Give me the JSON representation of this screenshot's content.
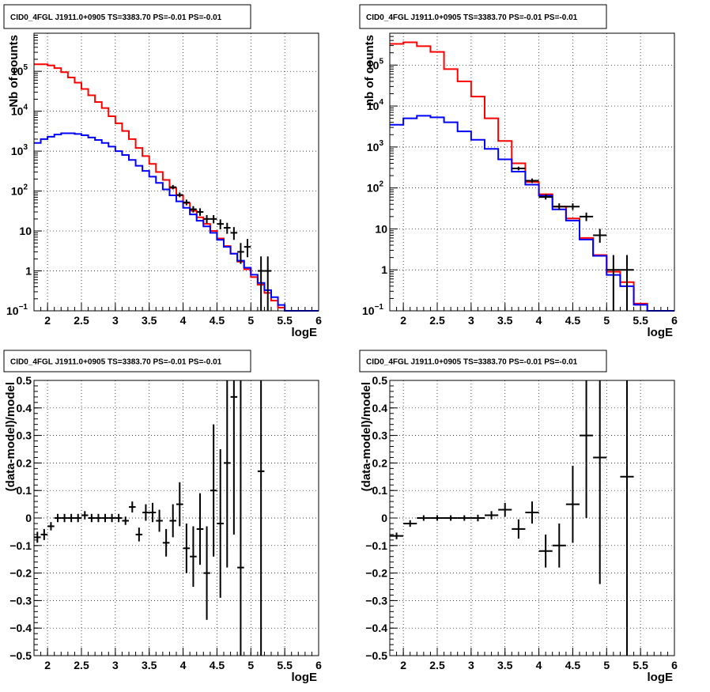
{
  "chart_data": [
    {
      "type": "histogram",
      "title": "CID0_4FGL J1911.0+0905 TS=3383.70 PS=-0.01 PS=-0.01",
      "xlabel": "logE",
      "ylabel": "Nb of counts",
      "log_y": true,
      "xlim": [
        1.8,
        6.0
      ],
      "ylim": [
        0.1,
        900000
      ],
      "grid": true,
      "x_ticks": [
        "2",
        "2.5",
        "3",
        "3.5",
        "4",
        "4.5",
        "5",
        "5.5",
        "6"
      ],
      "y_ticks": [
        {
          "value": 0.1,
          "label": "10",
          "exp": "−1"
        },
        {
          "value": 1,
          "label": "1",
          "exp": ""
        },
        {
          "value": 10,
          "label": "10",
          "exp": ""
        },
        {
          "value": 100,
          "label": "10",
          "exp": "2"
        },
        {
          "value": 1000,
          "label": "10",
          "exp": "3"
        },
        {
          "value": 10000,
          "label": "10",
          "exp": "4"
        },
        {
          "value": 100000,
          "label": "10",
          "exp": "5"
        }
      ],
      "bin_edges": [
        1.8,
        1.9,
        2.0,
        2.1,
        2.2,
        2.3,
        2.4,
        2.5,
        2.6,
        2.7,
        2.8,
        2.9,
        3.0,
        3.1,
        3.2,
        3.3,
        3.4,
        3.5,
        3.6,
        3.7,
        3.8,
        3.9,
        4.0,
        4.1,
        4.2,
        4.3,
        4.4,
        4.5,
        4.6,
        4.7,
        4.8,
        4.9,
        5.0,
        5.1,
        5.2,
        5.3,
        5.4,
        5.5,
        5.6,
        5.7,
        5.8,
        5.9,
        6.0
      ],
      "series": [
        {
          "color": "#ff0000",
          "values": [
            150000,
            150000,
            140000,
            120000,
            95000,
            70000,
            52000,
            36000,
            25000,
            17000,
            12000,
            7500,
            5000,
            3200,
            2000,
            1200,
            750,
            480,
            300,
            190,
            120,
            78,
            50,
            32,
            22,
            15,
            10,
            6.5,
            4.2,
            2.7,
            1.7,
            1.1,
            0.7,
            0.45,
            0.28,
            0.18,
            0.12,
            0.1,
            0.1,
            0.1,
            0.1,
            0.1
          ]
        },
        {
          "color": "#0000ff",
          "values": [
            1600,
            2000,
            2300,
            2600,
            2800,
            2800,
            2700,
            2500,
            2200,
            1900,
            1600,
            1300,
            1000,
            800,
            600,
            430,
            320,
            230,
            160,
            110,
            78,
            55,
            38,
            26,
            18,
            13,
            9,
            6,
            4,
            2.7,
            1.8,
            1.2,
            0.8,
            0.5,
            0.33,
            0.22,
            0.14,
            0.1,
            0.1,
            0.1,
            0.1,
            0.1
          ]
        },
        {
          "color": "#000000",
          "points": [
            {
              "x": 3.85,
              "y": 125,
              "ylo": 110,
              "yhi": 142
            },
            {
              "x": 3.95,
              "y": 80,
              "ylo": 70,
              "yhi": 92
            },
            {
              "x": 4.05,
              "y": 52,
              "ylo": 44,
              "yhi": 61
            },
            {
              "x": 4.15,
              "y": 35,
              "ylo": 29,
              "yhi": 42
            },
            {
              "x": 4.25,
              "y": 30,
              "ylo": 24,
              "yhi": 37
            },
            {
              "x": 4.35,
              "y": 20,
              "ylo": 15.5,
              "yhi": 25
            },
            {
              "x": 4.45,
              "y": 20,
              "ylo": 15.5,
              "yhi": 25
            },
            {
              "x": 4.55,
              "y": 15,
              "ylo": 11,
              "yhi": 19.5
            },
            {
              "x": 4.65,
              "y": 12,
              "ylo": 8.5,
              "yhi": 16
            },
            {
              "x": 4.75,
              "y": 9,
              "ylo": 6,
              "yhi": 12.5
            },
            {
              "x": 4.85,
              "y": 3,
              "ylo": 1.5,
              "yhi": 5
            },
            {
              "x": 4.95,
              "y": 4,
              "ylo": 2.2,
              "yhi": 6.3
            },
            {
              "x": 5.15,
              "y": 1,
              "ylo": 0.1,
              "yhi": 2.3
            },
            {
              "x": 5.25,
              "y": 1,
              "ylo": 0.1,
              "yhi": 2.3
            }
          ]
        }
      ]
    },
    {
      "type": "histogram",
      "title": "CID0_4FGL J1911.0+0905 TS=3383.70 PS=-0.01 PS=-0.01",
      "xlabel": "logE",
      "ylabel": "nb of counts",
      "log_y": true,
      "xlim": [
        1.8,
        6.0
      ],
      "ylim": [
        0.1,
        600000
      ],
      "grid": true,
      "x_ticks": [
        "2",
        "2.5",
        "3",
        "3.5",
        "4",
        "4.5",
        "5",
        "5.5",
        "6"
      ],
      "y_ticks": [
        {
          "value": 0.1,
          "label": "10",
          "exp": "−1"
        },
        {
          "value": 1,
          "label": "1",
          "exp": ""
        },
        {
          "value": 10,
          "label": "10",
          "exp": ""
        },
        {
          "value": 100,
          "label": "10",
          "exp": "2"
        },
        {
          "value": 1000,
          "label": "10",
          "exp": "3"
        },
        {
          "value": 10000,
          "label": "10",
          "exp": "4"
        },
        {
          "value": 100000,
          "label": "10",
          "exp": "5"
        }
      ],
      "bin_edges": [
        1.8,
        2.0,
        2.2,
        2.4,
        2.6,
        2.8,
        3.0,
        3.2,
        3.4,
        3.6,
        3.8,
        4.0,
        4.2,
        4.4,
        4.6,
        4.8,
        5.0,
        5.2,
        5.4,
        5.6,
        5.8,
        6.0
      ],
      "series": [
        {
          "color": "#ff0000",
          "values": [
            330000,
            360000,
            290000,
            210000,
            80000,
            40000,
            17000,
            5000,
            1400,
            400,
            140,
            70,
            35,
            18,
            6,
            2.3,
            0.9,
            0.5,
            0.15,
            0.1,
            0.1
          ]
        },
        {
          "color": "#0000ff",
          "values": [
            3500,
            5000,
            5800,
            5300,
            4000,
            2400,
            1500,
            900,
            500,
            250,
            120,
            65,
            30,
            16,
            5.5,
            2.2,
            0.75,
            0.4,
            0.14,
            0.1,
            0.1
          ]
        },
        {
          "color": "#000000",
          "points": [
            {
              "x": 3.7,
              "y": 300,
              "ylo": 270,
              "yhi": 330
            },
            {
              "x": 3.9,
              "y": 150,
              "ylo": 132,
              "yhi": 170
            },
            {
              "x": 4.1,
              "y": 60,
              "ylo": 52,
              "yhi": 70
            },
            {
              "x": 4.3,
              "y": 35,
              "ylo": 29,
              "yhi": 42
            },
            {
              "x": 4.5,
              "y": 35,
              "ylo": 29,
              "yhi": 42
            },
            {
              "x": 4.7,
              "y": 20,
              "ylo": 15.5,
              "yhi": 25
            },
            {
              "x": 4.9,
              "y": 7,
              "ylo": 4.6,
              "yhi": 10
            },
            {
              "x": 5.1,
              "y": 1,
              "ylo": 0.1,
              "yhi": 2.3
            },
            {
              "x": 5.3,
              "y": 1,
              "ylo": 0.1,
              "yhi": 2.3
            }
          ]
        }
      ]
    },
    {
      "type": "scatter",
      "title": "CID0_4FGL J1911.0+0905 TS=3383.70 PS=-0.01 PS=-0.01",
      "xlabel": "logE",
      "ylabel": "(data-model)/model",
      "log_y": false,
      "xlim": [
        1.8,
        6.0
      ],
      "ylim": [
        -0.5,
        0.5
      ],
      "grid": true,
      "x_ticks": [
        "2",
        "2.5",
        "3",
        "3.5",
        "4",
        "4.5",
        "5",
        "5.5",
        "6"
      ],
      "y_ticks": [
        "−0.5",
        "−0.4",
        "−0.3",
        "−0.2",
        "−0.1",
        "0",
        "0.1",
        "0.2",
        "0.3",
        "0.4",
        "0.5"
      ],
      "points": [
        {
          "x": 1.85,
          "y": -0.07,
          "err": 0.02,
          "xerr": 0.05
        },
        {
          "x": 1.95,
          "y": -0.06,
          "err": 0.02,
          "xerr": 0.05
        },
        {
          "x": 2.05,
          "y": -0.03,
          "err": 0.015,
          "xerr": 0.05
        },
        {
          "x": 2.15,
          "y": 0.0,
          "err": 0.015,
          "xerr": 0.05
        },
        {
          "x": 2.25,
          "y": 0.0,
          "err": 0.015,
          "xerr": 0.05
        },
        {
          "x": 2.35,
          "y": 0.0,
          "err": 0.015,
          "xerr": 0.05
        },
        {
          "x": 2.45,
          "y": 0.0,
          "err": 0.015,
          "xerr": 0.05
        },
        {
          "x": 2.55,
          "y": 0.01,
          "err": 0.015,
          "xerr": 0.05
        },
        {
          "x": 2.65,
          "y": 0.0,
          "err": 0.015,
          "xerr": 0.05
        },
        {
          "x": 2.75,
          "y": 0.0,
          "err": 0.015,
          "xerr": 0.05
        },
        {
          "x": 2.85,
          "y": 0.0,
          "err": 0.015,
          "xerr": 0.05
        },
        {
          "x": 2.95,
          "y": 0.0,
          "err": 0.015,
          "xerr": 0.05
        },
        {
          "x": 3.05,
          "y": 0.0,
          "err": 0.015,
          "xerr": 0.05
        },
        {
          "x": 3.15,
          "y": -0.01,
          "err": 0.015,
          "xerr": 0.05
        },
        {
          "x": 3.25,
          "y": 0.04,
          "err": 0.02,
          "xerr": 0.05
        },
        {
          "x": 3.35,
          "y": -0.06,
          "err": 0.025,
          "xerr": 0.05
        },
        {
          "x": 3.45,
          "y": 0.02,
          "err": 0.03,
          "xerr": 0.05
        },
        {
          "x": 3.55,
          "y": 0.02,
          "err": 0.035,
          "xerr": 0.05
        },
        {
          "x": 3.65,
          "y": -0.01,
          "err": 0.04,
          "xerr": 0.05
        },
        {
          "x": 3.75,
          "y": -0.09,
          "err": 0.05,
          "xerr": 0.05
        },
        {
          "x": 3.85,
          "y": -0.01,
          "err": 0.06,
          "xerr": 0.05
        },
        {
          "x": 3.95,
          "y": 0.05,
          "err": 0.08,
          "xerr": 0.05
        },
        {
          "x": 4.05,
          "y": -0.11,
          "err": 0.09,
          "xerr": 0.05
        },
        {
          "x": 4.15,
          "y": -0.14,
          "err": 0.11,
          "xerr": 0.05
        },
        {
          "x": 4.25,
          "y": -0.04,
          "err": 0.13,
          "xerr": 0.05
        },
        {
          "x": 4.35,
          "y": -0.2,
          "err": 0.17,
          "xerr": 0.05
        },
        {
          "x": 4.45,
          "y": 0.1,
          "err": 0.24,
          "xerr": 0.05
        },
        {
          "x": 4.55,
          "y": -0.02,
          "err": 0.27,
          "xerr": 0.05
        },
        {
          "x": 4.65,
          "y": 0.2,
          "err": 0.38,
          "xerr": 0.05
        },
        {
          "x": 4.75,
          "y": 0.44,
          "err": 0.5,
          "xerr": 0.05
        },
        {
          "x": 4.85,
          "y": -0.18,
          "err": 0.7,
          "xerr": 0.05
        },
        {
          "x": 5.15,
          "y": 0.17,
          "err": 1.0,
          "xerr": 0.05
        }
      ]
    },
    {
      "type": "scatter",
      "title": "CID0_4FGL J1911.0+0905 TS=3383.70 PS=-0.01 PS=-0.01",
      "xlabel": "logE",
      "ylabel": "(data-model)/model",
      "log_y": false,
      "xlim": [
        1.8,
        6.0
      ],
      "ylim": [
        -0.5,
        0.5
      ],
      "grid": true,
      "x_ticks": [
        "2",
        "2.5",
        "3",
        "3.5",
        "4",
        "4.5",
        "5",
        "5.5",
        "6"
      ],
      "y_ticks": [
        "−0.5",
        "−0.4",
        "−0.3",
        "−0.2",
        "−0.1",
        "0",
        "0.1",
        "0.2",
        "0.3",
        "0.4",
        "0.5"
      ],
      "points": [
        {
          "x": 1.9,
          "y": -0.065,
          "err": 0.012,
          "xerr": 0.1
        },
        {
          "x": 2.1,
          "y": -0.02,
          "err": 0.012,
          "xerr": 0.1
        },
        {
          "x": 2.3,
          "y": 0.0,
          "err": 0.01,
          "xerr": 0.1
        },
        {
          "x": 2.5,
          "y": 0.0,
          "err": 0.01,
          "xerr": 0.1
        },
        {
          "x": 2.7,
          "y": 0.0,
          "err": 0.01,
          "xerr": 0.1
        },
        {
          "x": 2.9,
          "y": 0.0,
          "err": 0.01,
          "xerr": 0.1
        },
        {
          "x": 3.1,
          "y": 0.0,
          "err": 0.012,
          "xerr": 0.1
        },
        {
          "x": 3.3,
          "y": 0.01,
          "err": 0.015,
          "xerr": 0.1
        },
        {
          "x": 3.5,
          "y": 0.03,
          "err": 0.025,
          "xerr": 0.1
        },
        {
          "x": 3.7,
          "y": -0.04,
          "err": 0.035,
          "xerr": 0.1
        },
        {
          "x": 3.9,
          "y": 0.02,
          "err": 0.04,
          "xerr": 0.1
        },
        {
          "x": 4.1,
          "y": -0.12,
          "err": 0.06,
          "xerr": 0.1
        },
        {
          "x": 4.3,
          "y": -0.1,
          "err": 0.08,
          "xerr": 0.1
        },
        {
          "x": 4.5,
          "y": 0.05,
          "err": 0.14,
          "xerr": 0.1
        },
        {
          "x": 4.7,
          "y": 0.3,
          "err": 0.3,
          "xerr": 0.1
        },
        {
          "x": 4.9,
          "y": 0.22,
          "err": 0.46,
          "xerr": 0.1
        },
        {
          "x": 5.3,
          "y": 0.15,
          "err": 1.0,
          "xerr": 0.1
        }
      ]
    }
  ]
}
